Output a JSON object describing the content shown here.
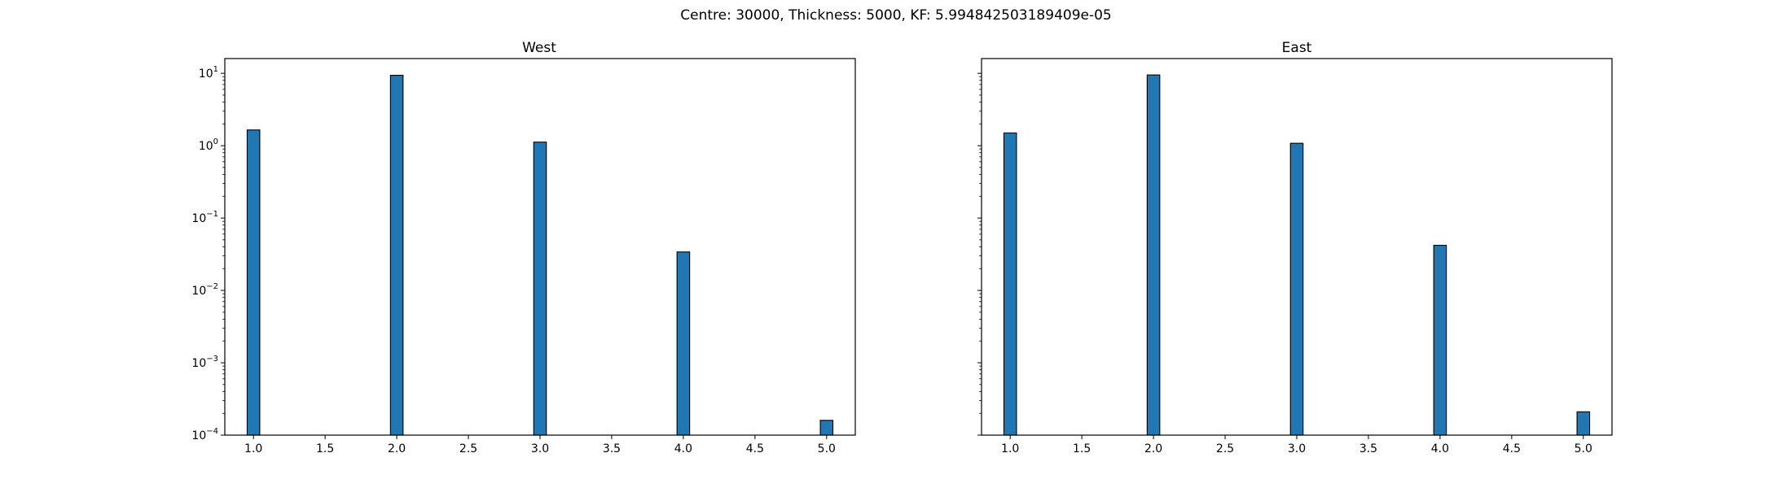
{
  "figure": {
    "suptitle": "Centre: 30000, Thickness: 5000, KF: 5.994842503189409e-05"
  },
  "chart_data": [
    {
      "type": "bar",
      "title": "West",
      "xlabel": "",
      "ylabel": "",
      "yscale": "log",
      "xlim": [
        0.8,
        5.2
      ],
      "ylim": [
        0.0001,
        16
      ],
      "x_ticks": [
        "1.0",
        "1.5",
        "2.0",
        "2.5",
        "3.0",
        "3.5",
        "4.0",
        "4.5",
        "5.0"
      ],
      "y_ticks": [
        "10^-4",
        "10^-3",
        "10^-2",
        "10^-1",
        "10^0",
        "10^1"
      ],
      "bar_color": "#1f77b4",
      "bar_edge_color": "#000000",
      "grid": false,
      "x": [
        1,
        2,
        3,
        4,
        5
      ],
      "values": [
        1.65,
        9.4,
        1.12,
        0.034,
        0.00016
      ]
    },
    {
      "type": "bar",
      "title": "East",
      "xlabel": "",
      "ylabel": "",
      "yscale": "log",
      "xlim": [
        0.8,
        5.2
      ],
      "ylim": [
        0.0001,
        16
      ],
      "x_ticks": [
        "1.0",
        "1.5",
        "2.0",
        "2.5",
        "3.0",
        "3.5",
        "4.0",
        "4.5",
        "5.0"
      ],
      "y_ticks": [],
      "bar_color": "#1f77b4",
      "bar_edge_color": "#000000",
      "grid": false,
      "x": [
        1,
        2,
        3,
        4,
        5
      ],
      "values": [
        1.5,
        9.5,
        1.08,
        0.042,
        0.00021
      ]
    }
  ]
}
